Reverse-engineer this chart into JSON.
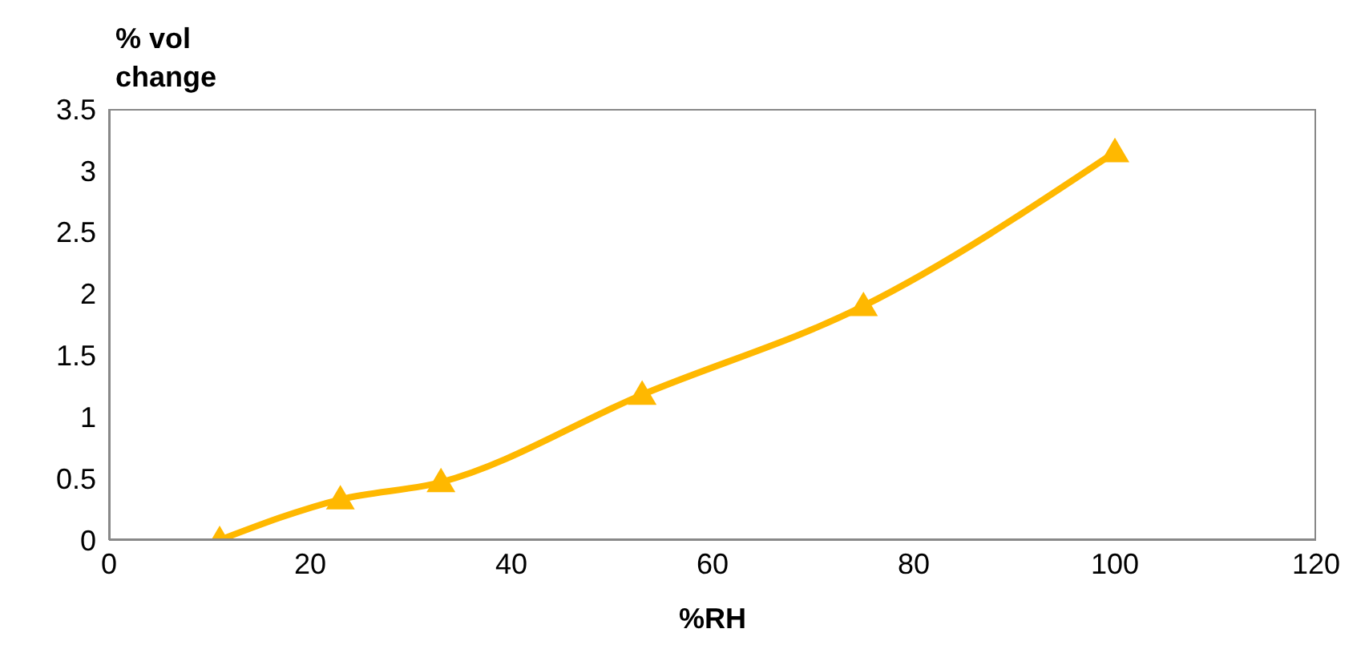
{
  "chart_data": {
    "type": "line",
    "xlabel": "%RH",
    "ylabel": "% vol change",
    "x": [
      11,
      23,
      33,
      53,
      75,
      100
    ],
    "series": [
      {
        "color": "#ffb800",
        "values": [
          0,
          0.33,
          0.47,
          1.18,
          1.9,
          3.15
        ]
      }
    ],
    "xlim": [
      0,
      120
    ],
    "xticks": [
      0,
      20,
      40,
      60,
      80,
      100,
      120
    ],
    "ylim": [
      0,
      3.5
    ],
    "yticks": [
      0,
      0.5,
      1,
      1.5,
      2,
      2.5,
      3,
      3.5
    ],
    "grid": false,
    "legend": false,
    "marker": "triangle",
    "line_style": "solid"
  }
}
